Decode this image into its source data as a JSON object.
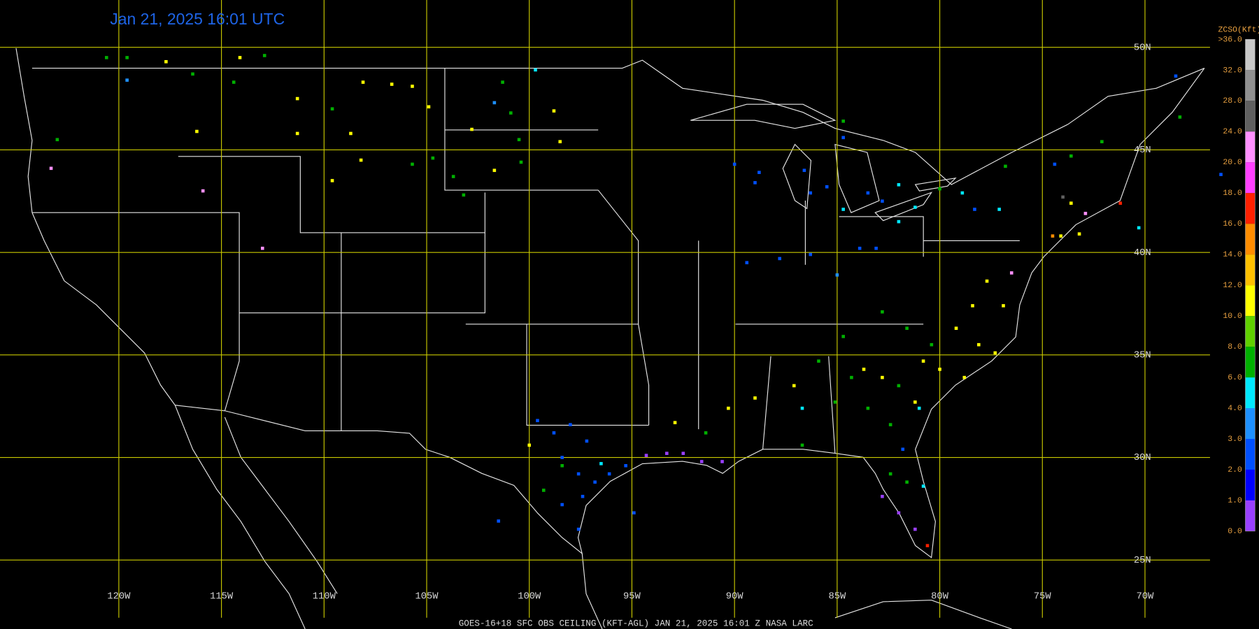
{
  "title": "Jan 21, 2025 16:01 UTC",
  "footer": "GOES-16+18  SFC OBS CEILING (KFT-AGL)   JAN 21, 2025 16:01 Z   NASA LARC",
  "map": {
    "lon_lines": [
      {
        "value": -120,
        "label": "120W"
      },
      {
        "value": -115,
        "label": "115W"
      },
      {
        "value": -110,
        "label": "110W"
      },
      {
        "value": -105,
        "label": "105W"
      },
      {
        "value": -100,
        "label": "100W"
      },
      {
        "value": -95,
        "label": "95W"
      },
      {
        "value": -90,
        "label": "90W"
      },
      {
        "value": -85,
        "label": "85W"
      },
      {
        "value": -80,
        "label": "80W"
      },
      {
        "value": -75,
        "label": "75W"
      },
      {
        "value": -70,
        "label": "70W"
      }
    ],
    "lat_lines": [
      {
        "value": 50,
        "label": "50N"
      },
      {
        "value": 45,
        "label": "45N"
      },
      {
        "value": 40,
        "label": "40N"
      },
      {
        "value": 35,
        "label": "35N"
      },
      {
        "value": 30,
        "label": "30N"
      },
      {
        "value": 25,
        "label": "25N"
      }
    ]
  },
  "legend": {
    "title": "ZCSO(Kft)",
    "levels": [
      {
        "value": 0,
        "label": "0.0"
      },
      {
        "value": 1,
        "label": "1.0"
      },
      {
        "value": 2,
        "label": "2.0"
      },
      {
        "value": 3,
        "label": "3.0"
      },
      {
        "value": 4,
        "label": "4.0"
      },
      {
        "value": 6,
        "label": "6.0"
      },
      {
        "value": 8,
        "label": "8.0"
      },
      {
        "value": 10,
        "label": "10.0"
      },
      {
        "value": 12,
        "label": "12.0"
      },
      {
        "value": 14,
        "label": "14.0"
      },
      {
        "value": 16,
        "label": "16.0"
      },
      {
        "value": 18,
        "label": "18.0"
      },
      {
        "value": 20,
        "label": "20.0"
      },
      {
        "value": 24,
        "label": "24.0"
      },
      {
        "value": 28,
        "label": "28.0"
      },
      {
        "value": 32,
        "label": "32.0"
      },
      {
        "value": 36,
        "label": ">36.0"
      }
    ],
    "colors": [
      "#9a40ff",
      "#0000ff",
      "#0050ff",
      "#1e90ff",
      "#00e8ff",
      "#00b000",
      "#60d000",
      "#ffff00",
      "#ffc000",
      "#ff8c00",
      "#ff2000",
      "#ff40ff",
      "#ff90ff",
      "#606060",
      "#909090",
      "#c8c8c8"
    ]
  },
  "stations": {
    "lon": [
      -120.6,
      -119.6,
      -117.7,
      -114.1,
      -112.9,
      -119.6,
      -123.0,
      -123.3,
      -116.2,
      -115.9,
      -113.0,
      -116.4,
      -114.4,
      -111.3,
      -111.3,
      -108.1,
      -106.7,
      -105.7,
      -104.9,
      -109.6,
      -108.7,
      -108.2,
      -109.6,
      -105.7,
      -104.7,
      -103.7,
      -103.2,
      -102.8,
      -101.7,
      -101.3,
      -101.7,
      -100.9,
      -100.5,
      -98.8,
      -98.5,
      -99.7,
      -100.4,
      -90.0,
      -88.8,
      -89.0,
      -86.6,
      -86.3,
      -85.5,
      -84.7,
      -83.5,
      -82.8,
      -82.0,
      -89.4,
      -87.8,
      -86.3,
      -85.0,
      -83.9,
      -83.1,
      -82.0,
      -81.2,
      -80.0,
      -78.9,
      -84.7,
      -84.7,
      -83.7,
      -82.8,
      -84.3,
      -82.0,
      -80.8,
      -80.0,
      -78.8,
      -78.1,
      -77.3,
      -85.9,
      -87.1,
      -86.7,
      -89.0,
      -90.3,
      -91.4,
      -92.9,
      -85.1,
      -83.5,
      -82.4,
      -81.2,
      -80.4,
      -79.2,
      -78.4,
      -76.9,
      -77.7,
      -81.6,
      -82.8,
      -76.5,
      -84.7,
      -99.6,
      -98.8,
      -98.0,
      -97.2,
      -98.4,
      -97.6,
      -96.8,
      -96.1,
      -95.3,
      -98.4,
      -97.6,
      -101.5,
      -94.9,
      -100.0,
      -98.4,
      -96.5,
      -99.3,
      -97.4,
      -94.3,
      -93.3,
      -92.5,
      -91.6,
      -90.6,
      -86.7,
      -82.8,
      -82.0,
      -81.2,
      -80.6,
      -81.6,
      -82.4,
      -80.8,
      -81.8,
      -81.0,
      -74.5,
      -74.1,
      -73.2,
      -71.2,
      -72.9,
      -73.6,
      -76.8,
      -74.4,
      -73.6,
      -72.1,
      -68.3,
      -68.5,
      -66.3,
      -70.3,
      -74.0,
      -78.3,
      -77.1
    ],
    "lat": [
      49.5,
      49.5,
      49.3,
      49.5,
      49.6,
      48.4,
      45.5,
      44.1,
      45.9,
      43.0,
      40.2,
      48.7,
      48.3,
      47.5,
      45.8,
      48.3,
      48.2,
      48.1,
      47.1,
      47.0,
      45.8,
      44.5,
      43.5,
      44.3,
      44.6,
      43.7,
      42.8,
      46.0,
      44.0,
      48.3,
      47.3,
      46.8,
      45.5,
      46.9,
      45.4,
      48.9,
      44.4,
      44.3,
      43.9,
      43.4,
      44.0,
      42.9,
      43.2,
      42.1,
      42.9,
      42.5,
      43.3,
      39.5,
      39.7,
      39.9,
      38.9,
      40.2,
      40.2,
      41.5,
      42.2,
      43.1,
      42.9,
      45.6,
      46.4,
      34.3,
      33.9,
      33.9,
      33.5,
      34.7,
      34.3,
      33.9,
      35.5,
      35.1,
      34.7,
      33.5,
      32.4,
      32.9,
      32.4,
      31.2,
      31.7,
      32.7,
      32.4,
      31.6,
      32.7,
      35.5,
      36.3,
      37.4,
      37.4,
      38.6,
      36.3,
      37.1,
      39.0,
      35.9,
      31.8,
      31.2,
      31.6,
      30.8,
      30.0,
      29.2,
      28.8,
      29.2,
      29.6,
      27.7,
      26.5,
      26.9,
      27.3,
      30.6,
      29.6,
      29.7,
      28.4,
      28.1,
      30.1,
      30.2,
      30.2,
      29.8,
      29.8,
      30.6,
      28.1,
      27.3,
      26.5,
      25.7,
      28.8,
      29.2,
      28.6,
      30.4,
      32.4,
      40.8,
      40.8,
      40.9,
      42.4,
      41.9,
      42.4,
      44.2,
      44.3,
      44.7,
      45.4,
      46.6,
      48.6,
      43.8,
      41.2,
      42.7,
      42.1,
      42.1
    ],
    "ceiling": [
      7,
      7,
      11,
      11,
      7,
      3.5,
      7,
      22,
      11,
      22,
      22,
      7,
      7,
      11,
      11,
      11,
      11,
      11,
      11,
      7,
      11,
      11,
      11,
      7,
      7,
      7,
      7,
      11,
      11,
      7,
      3.5,
      7,
      7,
      11,
      11,
      5,
      7,
      2.5,
      2.5,
      2.5,
      2.5,
      2.5,
      2.5,
      5,
      2.5,
      2.5,
      5,
      2.5,
      2.5,
      2.5,
      3.5,
      2.5,
      2.5,
      5,
      5,
      7,
      5,
      2.5,
      7,
      11,
      11,
      7,
      7,
      11,
      11,
      11,
      11,
      11,
      7,
      11,
      5,
      11,
      11,
      7,
      11,
      7,
      7,
      7,
      11,
      7,
      11,
      11,
      11,
      11,
      7,
      7,
      22,
      7,
      2.5,
      2.5,
      2.5,
      2.5,
      2.5,
      2.5,
      2.5,
      2.5,
      2.5,
      2.5,
      2.5,
      2.5,
      2.5,
      11,
      7,
      5,
      7,
      2.5,
      0.5,
      0.5,
      0.5,
      0.5,
      0.5,
      7,
      0.5,
      0.5,
      0.5,
      17,
      7,
      7,
      5,
      2.5,
      5,
      15,
      11,
      11,
      17,
      22,
      11,
      7,
      2.5,
      7,
      7,
      7,
      2.5,
      2.5,
      5,
      26,
      2.5,
      5
    ]
  }
}
